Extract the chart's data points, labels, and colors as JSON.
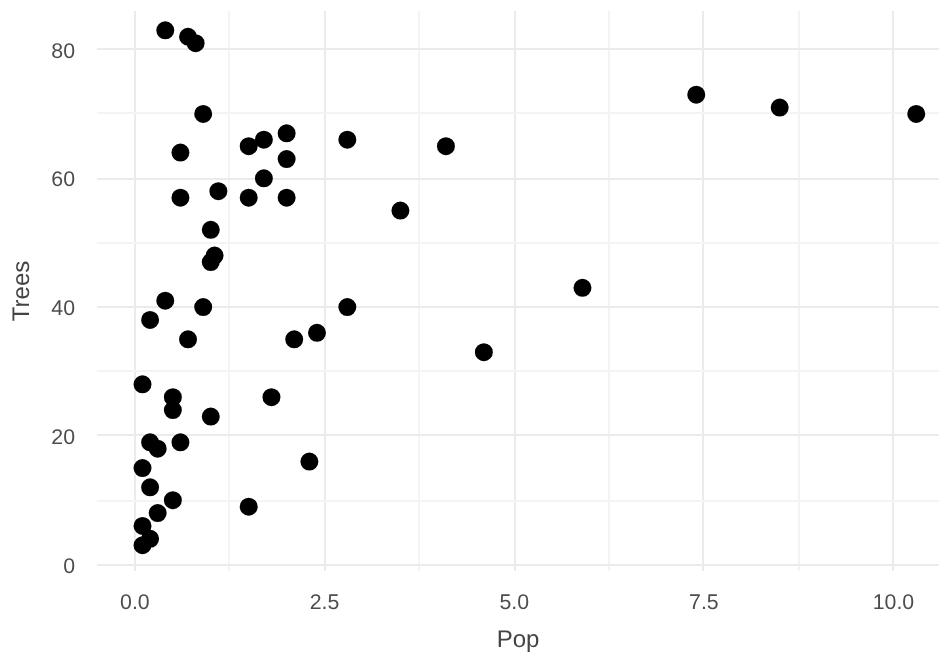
{
  "chart_data": {
    "type": "scatter",
    "xlabel": "Pop",
    "ylabel": "Trees",
    "xlim": [
      -0.5,
      10.6
    ],
    "ylim": [
      -1,
      86
    ],
    "xticks": [
      {
        "value": 0,
        "label": "0.0"
      },
      {
        "value": 2.5,
        "label": "2.5"
      },
      {
        "value": 5,
        "label": "5.0"
      },
      {
        "value": 7.5,
        "label": "7.5"
      },
      {
        "value": 10,
        "label": "10.0"
      }
    ],
    "yticks": [
      0,
      20,
      40,
      60,
      80
    ],
    "grid": true,
    "marker": "circle",
    "series": [
      {
        "color": "#000000",
        "x": [
          0.4,
          0.7,
          0.8,
          0.9,
          0.6,
          1.5,
          1.7,
          2.0,
          2.8,
          4.1,
          2.0,
          1.7,
          1.1,
          0.6,
          1.5,
          2.0,
          3.5,
          1.0,
          1.05,
          1.0,
          0.4,
          0.9,
          2.8,
          0.2,
          0.7,
          2.1,
          2.4,
          4.6,
          5.9,
          7.4,
          8.5,
          10.3,
          0.1,
          0.5,
          0.5,
          1.8,
          1.0,
          0.2,
          0.3,
          0.6,
          0.1,
          2.3,
          0.2,
          0.5,
          1.5,
          0.3,
          0.1,
          0.2,
          0.1
        ],
        "values": [
          83,
          82,
          81,
          70,
          64,
          65,
          66,
          67,
          66,
          65,
          63,
          60,
          58,
          57,
          57,
          57,
          55,
          52,
          48,
          47,
          41,
          40,
          40,
          38,
          35,
          35,
          36,
          33,
          43,
          73,
          71,
          70,
          28,
          26,
          24,
          26,
          23,
          19,
          18,
          19,
          15,
          16,
          12,
          10,
          9,
          8,
          6,
          4,
          3
        ]
      }
    ]
  }
}
